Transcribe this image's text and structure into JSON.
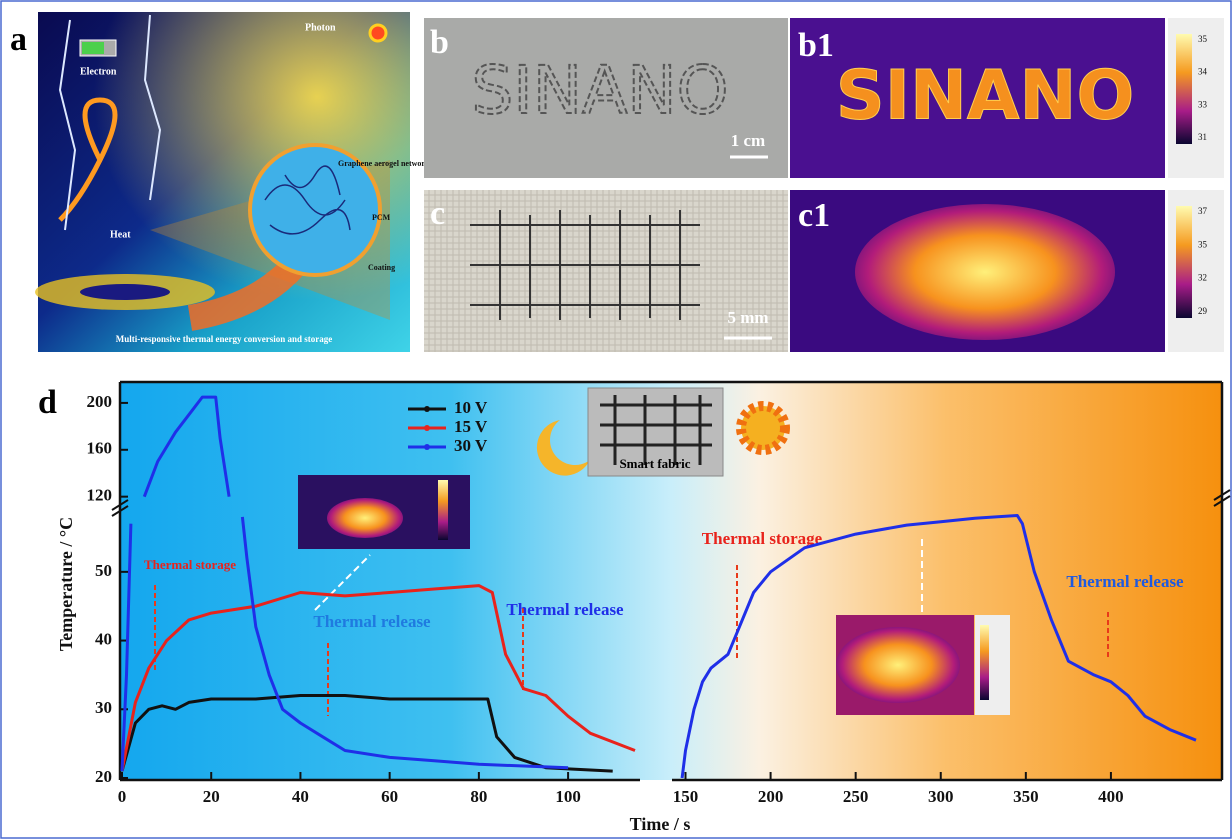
{
  "panel_a": {
    "label": "a",
    "photon": "Photon",
    "electron": "Electron",
    "heat": "Heat",
    "network": "Graphene aerogel network",
    "pcm": "PCM",
    "coating": "Coating",
    "caption": "Multi-responsive thermal energy conversion and storage"
  },
  "panel_b": {
    "label": "b",
    "text": "SINANO",
    "scale": "1 cm"
  },
  "panel_b1": {
    "label": "b1",
    "text": "SINANO",
    "colorbar": [
      "35",
      "34",
      "33",
      "31"
    ]
  },
  "panel_c": {
    "label": "c",
    "scale": "5 mm"
  },
  "panel_c1": {
    "label": "c1",
    "colorbar": [
      "37",
      "35",
      "32",
      "29"
    ]
  },
  "chart_data": {
    "type": "line",
    "label": "d",
    "x_label": "Time / s",
    "y_label": "Temperature / °C",
    "x_segments": [
      {
        "xlim": [
          0,
          115
        ],
        "xticks": [
          0,
          20,
          40,
          60,
          80,
          100
        ]
      },
      {
        "xlim": [
          145,
          450
        ],
        "xticks": [
          150,
          200,
          250,
          300,
          350,
          400
        ]
      }
    ],
    "y_segments": [
      {
        "ylim": [
          20,
          59
        ],
        "yticks": [
          20,
          30,
          40,
          50
        ]
      },
      {
        "ylim": [
          118,
          217
        ],
        "yticks": [
          120,
          160,
          200
        ]
      }
    ],
    "series": [
      {
        "name": "10 V",
        "color": "#111111",
        "x": [
          0,
          3,
          6,
          9,
          12,
          15,
          20,
          30,
          40,
          50,
          60,
          70,
          80,
          82,
          84,
          88,
          95,
          110
        ],
        "values": [
          21,
          28,
          30,
          30.5,
          30,
          31,
          31.5,
          31.5,
          32,
          32,
          31.5,
          31.5,
          31.5,
          31.5,
          26,
          23,
          21.5,
          21
        ]
      },
      {
        "name": "15 V",
        "color": "#e8231c",
        "x": [
          0,
          3,
          6,
          10,
          15,
          20,
          30,
          40,
          50,
          60,
          70,
          80,
          83,
          86,
          90,
          95,
          100,
          105,
          115
        ],
        "values": [
          21,
          31,
          36,
          40,
          43,
          44,
          45,
          47,
          46.5,
          47,
          47.5,
          48,
          47,
          38,
          33,
          32,
          29,
          26.5,
          24
        ]
      },
      {
        "name": "30 V",
        "color": "#1f2fe8",
        "x": [
          0,
          1,
          2,
          3,
          5,
          8,
          12,
          16,
          18,
          21,
          22,
          24,
          25,
          27,
          28,
          30,
          33,
          36,
          40,
          45,
          50,
          60,
          70,
          80,
          100
        ],
        "values": [
          21,
          35,
          57,
          null,
          120,
          150,
          175,
          195,
          205,
          205,
          170,
          120,
          null,
          58,
          52,
          42,
          35,
          30,
          28,
          26,
          24,
          23,
          22.5,
          22,
          21.5
        ]
      },
      {
        "color": "#1f2fe8",
        "x": [
          148,
          150,
          155,
          160,
          165,
          170,
          175,
          180,
          190,
          200,
          220,
          250,
          280,
          300,
          320,
          345,
          348,
          355,
          365,
          375,
          390,
          400,
          410,
          420,
          435,
          450
        ],
        "values": [
          20,
          24,
          30,
          34,
          36,
          37,
          38,
          41,
          47,
          50,
          53.5,
          55.5,
          56.8,
          57.3,
          57.8,
          58.2,
          57,
          50,
          43,
          37,
          35,
          34,
          32,
          29,
          27,
          25.5
        ]
      }
    ],
    "annotations": {
      "storage_left": "Thermal storage",
      "release_mid": "Thermal release",
      "release_left": "Thermal release",
      "storage_right": "Thermal storage",
      "release_right": "Thermal release",
      "fabric": "Smart fabric"
    }
  }
}
